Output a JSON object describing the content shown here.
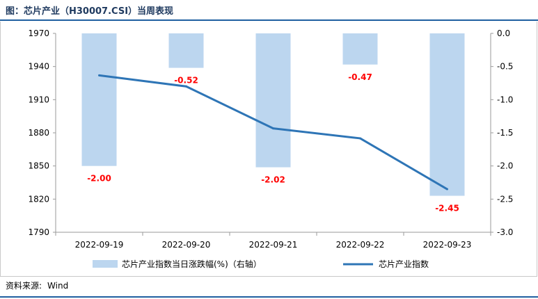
{
  "title": "图：芯片产业（H30007.CSI）当周表现",
  "source": {
    "label": "资料来源:",
    "value": "Wind"
  },
  "colors": {
    "bar": "#bcd6ef",
    "line": "#2e75b6",
    "label": "#ff0000",
    "axis": "#9a9a9a"
  },
  "chart_data": {
    "type": "bar+line",
    "categories": [
      "2022-09-19",
      "2022-09-20",
      "2022-09-21",
      "2022-09-22",
      "2022-09-23"
    ],
    "series": [
      {
        "name": "芯片产业指数当日涨跌幅(%)（右轴）",
        "type": "bar",
        "axis": "right",
        "values": [
          -2.0,
          -0.52,
          -2.02,
          -0.47,
          -2.45
        ],
        "labels": [
          "-2.00",
          "-0.52",
          "-2.02",
          "-0.47",
          "-2.45"
        ]
      },
      {
        "name": "芯片产业指数",
        "type": "line",
        "axis": "left",
        "values": [
          1932,
          1922,
          1884,
          1875,
          1829
        ]
      }
    ],
    "left_axis": {
      "min": 1790,
      "max": 1970,
      "ticks": [
        "1970",
        "1940",
        "1910",
        "1880",
        "1850",
        "1820",
        "1790"
      ]
    },
    "right_axis": {
      "min": -3.0,
      "max": 0.0,
      "ticks": [
        "0.0",
        "-0.5",
        "-1.0",
        "-1.5",
        "-2.0",
        "-2.5",
        "-3.0"
      ]
    },
    "legend": [
      "芯片产业指数当日涨跌幅(%)（右轴）",
      "芯片产业指数"
    ]
  }
}
